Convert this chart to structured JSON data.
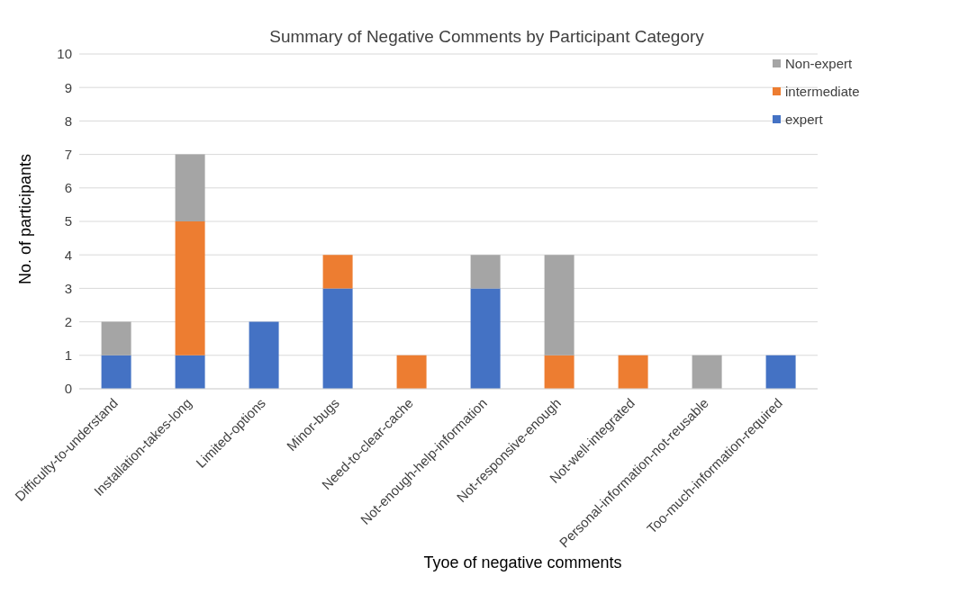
{
  "chart_data": {
    "type": "bar",
    "title": "Summary of Negative Comments by Participant Category",
    "xlabel": "Tyoe of negative comments",
    "ylabel": "No. of participants",
    "categories": [
      "Difficulty-to-understand",
      "Installation-takes-long",
      "Limited-options",
      "Minor-bugs",
      "Need-to-clear-cache",
      "Not-enough-help-information",
      "Not-responsive-enough",
      "Not-well-integrated",
      "Personal-information-not-reusable",
      "Too-much-information-required"
    ],
    "series": [
      {
        "name": "expert",
        "color": "#4472c4",
        "values": [
          1,
          1,
          2,
          3,
          0,
          3,
          0,
          0,
          0,
          1
        ]
      },
      {
        "name": "intermediate",
        "color": "#ed7d31",
        "values": [
          0,
          4,
          0,
          1,
          1,
          0,
          1,
          1,
          0,
          0
        ]
      },
      {
        "name": "Non-expert",
        "color": "#a5a5a5",
        "values": [
          1,
          2,
          0,
          0,
          0,
          1,
          3,
          0,
          1,
          0
        ]
      }
    ],
    "stacked": true,
    "ylim": [
      0,
      10
    ],
    "yticks": [
      0,
      1,
      2,
      3,
      4,
      5,
      6,
      7,
      8,
      9,
      10
    ],
    "grid": "y",
    "legend": "top right"
  }
}
